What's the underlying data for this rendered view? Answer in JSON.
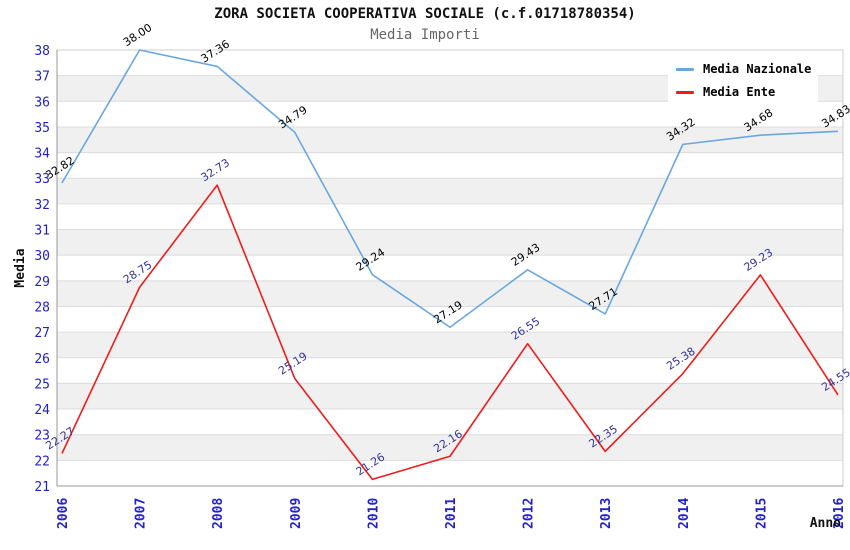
{
  "header": {
    "title": "ZORA SOCIETA COOPERATIVA SOCIALE (c.f.01718780354)",
    "subtitle": "Media Importi"
  },
  "chart_data": {
    "type": "line",
    "title": "ZORA SOCIETA COOPERATIVA SOCIALE (c.f.01718780354)",
    "subtitle": "Media Importi",
    "categories": [
      "2006",
      "2007",
      "2008",
      "2009",
      "2010",
      "2011",
      "2012",
      "2013",
      "2014",
      "2015",
      "2016"
    ],
    "series": [
      {
        "name": "Media Nazionale",
        "color": "#6aa7e0",
        "label_color": "#000000",
        "values": [
          32.82,
          38.0,
          37.36,
          34.79,
          29.24,
          27.19,
          29.43,
          27.71,
          34.32,
          34.68,
          34.83
        ]
      },
      {
        "name": "Media Ente",
        "color": "#ee1c1c",
        "label_color": "#333399",
        "values": [
          22.27,
          28.75,
          32.73,
          25.19,
          21.26,
          22.16,
          26.55,
          22.35,
          25.38,
          29.23,
          24.55
        ]
      }
    ],
    "xlabel": "Anno",
    "ylabel": "Media",
    "ylim": [
      21,
      38
    ],
    "y_tick_step": 1,
    "x_tick_rotation": -90,
    "data_label_rotation": -33,
    "data_label_decimals": 2,
    "grid": true,
    "legend_position": "top-right",
    "colors": {
      "tick_label": "#2222cc",
      "band": "#f0f0f0",
      "gridline": "#dcdcdc",
      "plot_border": "#cccccc",
      "axis": "#999999",
      "title": "#111111",
      "subtitle": "#666666",
      "axis_title": "#111111"
    }
  }
}
